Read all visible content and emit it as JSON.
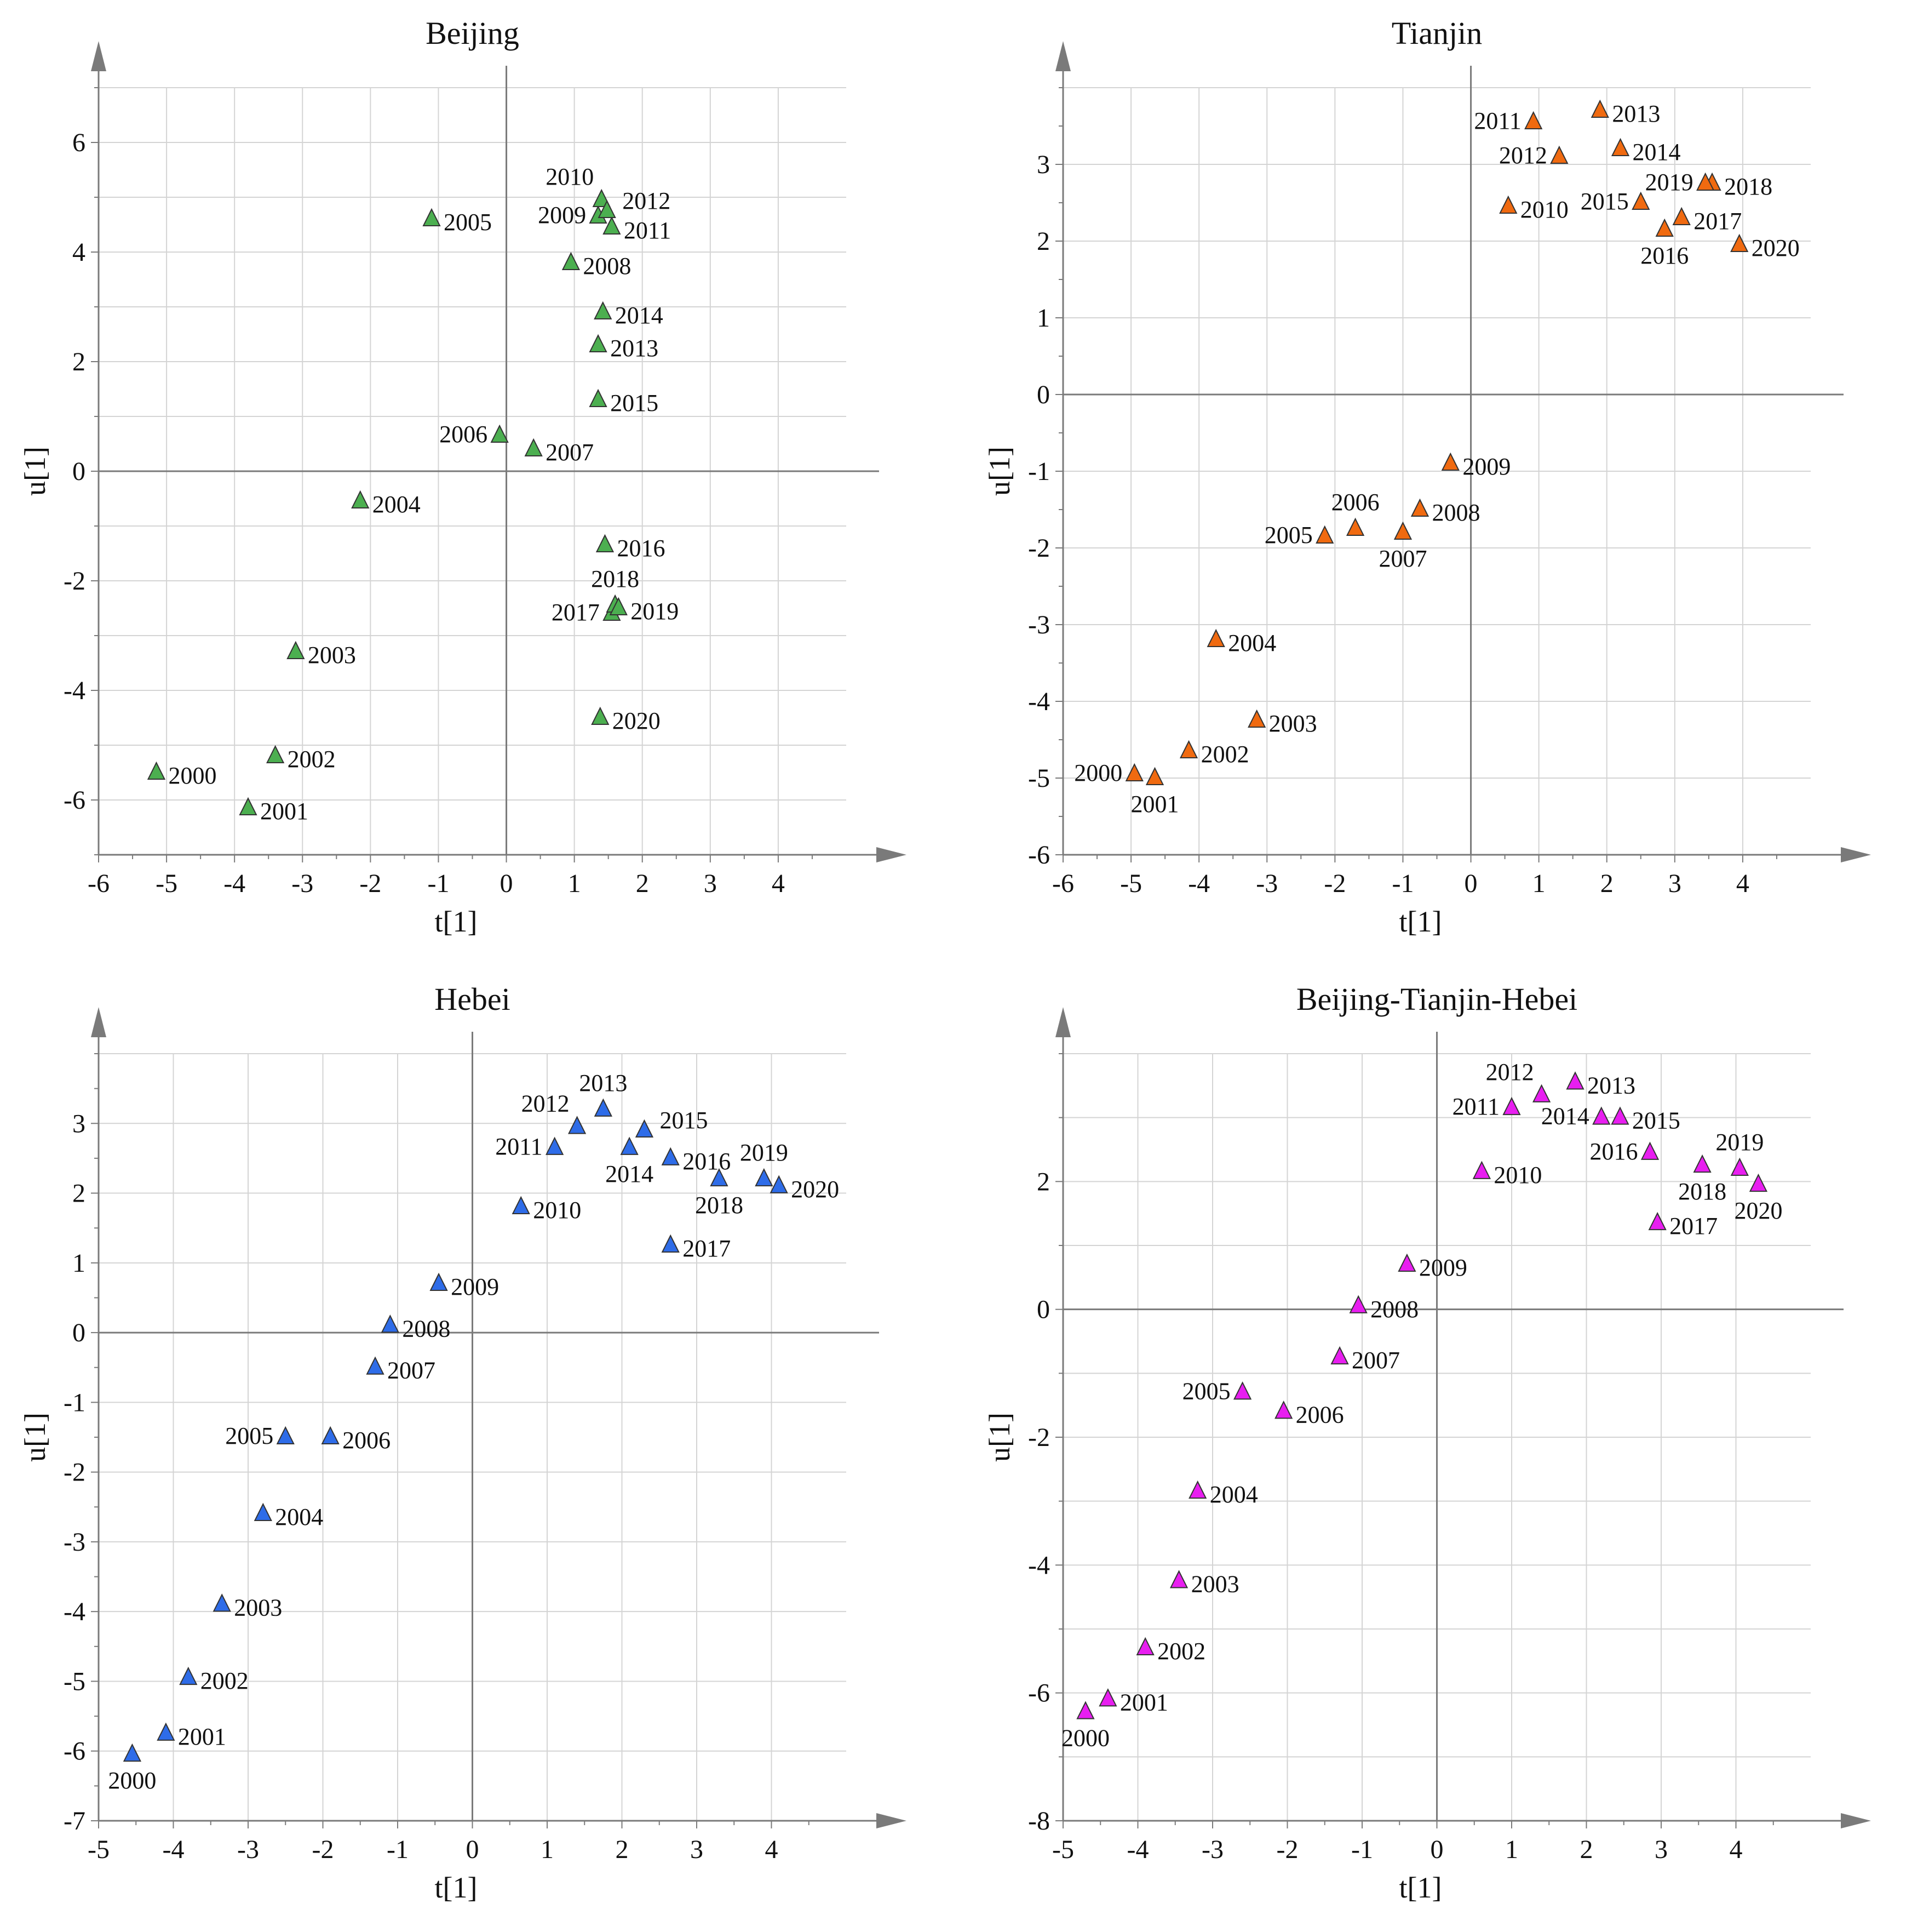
{
  "chart_data": [
    {
      "type": "scatter",
      "title": "Beijing",
      "xlabel": "t[1]",
      "ylabel": "u[1]",
      "xlim": [
        -6,
        5
      ],
      "ylim": [
        -7,
        7
      ],
      "xticks": [
        -6,
        -5,
        -4,
        -3,
        -2,
        -1,
        0,
        1,
        2,
        3,
        4
      ],
      "yticks": [
        -6,
        -4,
        -2,
        0,
        2,
        4,
        6
      ],
      "color": "#4caf50",
      "points": [
        {
          "label": "2000",
          "x": -5.15,
          "y": -5.5,
          "pos": "right"
        },
        {
          "label": "2001",
          "x": -3.8,
          "y": -6.15,
          "pos": "right"
        },
        {
          "label": "2002",
          "x": -3.4,
          "y": -5.2,
          "pos": "right"
        },
        {
          "label": "2003",
          "x": -3.1,
          "y": -3.3,
          "pos": "right"
        },
        {
          "label": "2004",
          "x": -2.15,
          "y": -0.55,
          "pos": "right"
        },
        {
          "label": "2005",
          "x": -1.1,
          "y": 4.6,
          "pos": "right"
        },
        {
          "label": "2006",
          "x": -0.1,
          "y": 0.65,
          "pos": "left"
        },
        {
          "label": "2007",
          "x": 0.4,
          "y": 0.4,
          "pos": "right"
        },
        {
          "label": "2008",
          "x": 0.95,
          "y": 3.8,
          "pos": "right"
        },
        {
          "label": "2009",
          "x": 1.35,
          "y": 4.65,
          "pos": "left"
        },
        {
          "label": "2010",
          "x": 1.4,
          "y": 4.95,
          "pos": "upleft"
        },
        {
          "label": "2011",
          "x": 1.55,
          "y": 4.45,
          "pos": "right"
        },
        {
          "label": "2012",
          "x": 1.48,
          "y": 4.75,
          "pos": "upright"
        },
        {
          "label": "2013",
          "x": 1.35,
          "y": 2.3,
          "pos": "right"
        },
        {
          "label": "2014",
          "x": 1.42,
          "y": 2.9,
          "pos": "right"
        },
        {
          "label": "2015",
          "x": 1.35,
          "y": 1.3,
          "pos": "right"
        },
        {
          "label": "2016",
          "x": 1.45,
          "y": -1.35,
          "pos": "right"
        },
        {
          "label": "2017",
          "x": 1.55,
          "y": -2.6,
          "pos": "left"
        },
        {
          "label": "2018",
          "x": 1.6,
          "y": -2.45,
          "pos": "above"
        },
        {
          "label": "2019",
          "x": 1.65,
          "y": -2.5,
          "pos": "right"
        },
        {
          "label": "2020",
          "x": 1.38,
          "y": -4.5,
          "pos": "right"
        }
      ]
    },
    {
      "type": "scatter",
      "title": "Tianjin",
      "xlabel": "t[1]",
      "ylabel": "u[1]",
      "xlim": [
        -6,
        5
      ],
      "ylim": [
        -6,
        4
      ],
      "xticks": [
        -6,
        -5,
        -4,
        -3,
        -2,
        -1,
        0,
        1,
        2,
        3,
        4
      ],
      "yticks": [
        -6,
        -5,
        -4,
        -3,
        -2,
        -1,
        0,
        1,
        2,
        3
      ],
      "color": "#f06a10",
      "points": [
        {
          "label": "2000",
          "x": -4.95,
          "y": -4.95,
          "pos": "left"
        },
        {
          "label": "2001",
          "x": -4.65,
          "y": -5.0,
          "pos": "below"
        },
        {
          "label": "2002",
          "x": -4.15,
          "y": -4.65,
          "pos": "right"
        },
        {
          "label": "2003",
          "x": -3.15,
          "y": -4.25,
          "pos": "right"
        },
        {
          "label": "2004",
          "x": -3.75,
          "y": -3.2,
          "pos": "right"
        },
        {
          "label": "2005",
          "x": -2.15,
          "y": -1.85,
          "pos": "left"
        },
        {
          "label": "2006",
          "x": -1.7,
          "y": -1.75,
          "pos": "above"
        },
        {
          "label": "2007",
          "x": -1.0,
          "y": -1.8,
          "pos": "below"
        },
        {
          "label": "2008",
          "x": -0.75,
          "y": -1.5,
          "pos": "right"
        },
        {
          "label": "2009",
          "x": -0.3,
          "y": -0.9,
          "pos": "right"
        },
        {
          "label": "2010",
          "x": 0.55,
          "y": 2.45,
          "pos": "right"
        },
        {
          "label": "2011",
          "x": 0.92,
          "y": 3.55,
          "pos": "left"
        },
        {
          "label": "2012",
          "x": 1.3,
          "y": 3.1,
          "pos": "left"
        },
        {
          "label": "2013",
          "x": 1.9,
          "y": 3.7,
          "pos": "right"
        },
        {
          "label": "2014",
          "x": 2.2,
          "y": 3.2,
          "pos": "right"
        },
        {
          "label": "2015",
          "x": 2.5,
          "y": 2.5,
          "pos": "left"
        },
        {
          "label": "2016",
          "x": 2.85,
          "y": 2.15,
          "pos": "below"
        },
        {
          "label": "2017",
          "x": 3.1,
          "y": 2.3,
          "pos": "right"
        },
        {
          "label": "2018",
          "x": 3.55,
          "y": 2.75,
          "pos": "right"
        },
        {
          "label": "2019",
          "x": 3.45,
          "y": 2.75,
          "pos": "left"
        },
        {
          "label": "2020",
          "x": 3.95,
          "y": 1.95,
          "pos": "right"
        }
      ]
    },
    {
      "type": "scatter",
      "title": "Hebei",
      "xlabel": "t[1]",
      "ylabel": "u[1]",
      "xlim": [
        -5,
        5
      ],
      "ylim": [
        -7,
        4
      ],
      "xticks": [
        -5,
        -4,
        -3,
        -2,
        -1,
        0,
        1,
        2,
        3,
        4
      ],
      "yticks": [
        -7,
        -6,
        -5,
        -4,
        -3,
        -2,
        -1,
        0,
        1,
        2,
        3
      ],
      "color": "#2e6ce8",
      "points": [
        {
          "label": "2000",
          "x": -4.55,
          "y": -6.05,
          "pos": "below"
        },
        {
          "label": "2001",
          "x": -4.1,
          "y": -5.75,
          "pos": "right"
        },
        {
          "label": "2002",
          "x": -3.8,
          "y": -4.95,
          "pos": "right"
        },
        {
          "label": "2003",
          "x": -3.35,
          "y": -3.9,
          "pos": "right"
        },
        {
          "label": "2004",
          "x": -2.8,
          "y": -2.6,
          "pos": "right"
        },
        {
          "label": "2005",
          "x": -2.5,
          "y": -1.5,
          "pos": "left"
        },
        {
          "label": "2006",
          "x": -1.9,
          "y": -1.5,
          "pos": "right"
        },
        {
          "label": "2007",
          "x": -1.3,
          "y": -0.5,
          "pos": "right"
        },
        {
          "label": "2008",
          "x": -1.1,
          "y": 0.1,
          "pos": "right"
        },
        {
          "label": "2009",
          "x": -0.45,
          "y": 0.7,
          "pos": "right"
        },
        {
          "label": "2010",
          "x": 0.65,
          "y": 1.8,
          "pos": "right"
        },
        {
          "label": "2011",
          "x": 1.1,
          "y": 2.65,
          "pos": "left"
        },
        {
          "label": "2012",
          "x": 1.4,
          "y": 2.95,
          "pos": "upleft"
        },
        {
          "label": "2013",
          "x": 1.75,
          "y": 3.2,
          "pos": "above"
        },
        {
          "label": "2014",
          "x": 2.1,
          "y": 2.65,
          "pos": "below"
        },
        {
          "label": "2015",
          "x": 2.3,
          "y": 2.9,
          "pos": "upright"
        },
        {
          "label": "2016",
          "x": 2.65,
          "y": 2.5,
          "pos": "right"
        },
        {
          "label": "2017",
          "x": 2.65,
          "y": 1.25,
          "pos": "right"
        },
        {
          "label": "2018",
          "x": 3.3,
          "y": 2.2,
          "pos": "below"
        },
        {
          "label": "2019",
          "x": 3.9,
          "y": 2.2,
          "pos": "above"
        },
        {
          "label": "2020",
          "x": 4.1,
          "y": 2.1,
          "pos": "right"
        }
      ]
    },
    {
      "type": "scatter",
      "title": "Beijing-Tianjin-Hebei",
      "xlabel": "t[1]",
      "ylabel": "u[1]",
      "xlim": [
        -5,
        5
      ],
      "ylim": [
        -8,
        4
      ],
      "xticks": [
        -5,
        -4,
        -3,
        -2,
        -1,
        0,
        1,
        2,
        3,
        4
      ],
      "yticks": [
        -8,
        -6,
        -4,
        -2,
        0,
        2
      ],
      "color": "#e81ef0",
      "points": [
        {
          "label": "2000",
          "x": -4.7,
          "y": -6.3,
          "pos": "below"
        },
        {
          "label": "2001",
          "x": -4.4,
          "y": -6.1,
          "pos": "right"
        },
        {
          "label": "2002",
          "x": -3.9,
          "y": -5.3,
          "pos": "right"
        },
        {
          "label": "2003",
          "x": -3.45,
          "y": -4.25,
          "pos": "right"
        },
        {
          "label": "2004",
          "x": -3.2,
          "y": -2.85,
          "pos": "right"
        },
        {
          "label": "2005",
          "x": -2.6,
          "y": -1.3,
          "pos": "left"
        },
        {
          "label": "2006",
          "x": -2.05,
          "y": -1.6,
          "pos": "right"
        },
        {
          "label": "2007",
          "x": -1.3,
          "y": -0.75,
          "pos": "right"
        },
        {
          "label": "2008",
          "x": -1.05,
          "y": 0.05,
          "pos": "right"
        },
        {
          "label": "2009",
          "x": -0.4,
          "y": 0.7,
          "pos": "right"
        },
        {
          "label": "2010",
          "x": 0.6,
          "y": 2.15,
          "pos": "right"
        },
        {
          "label": "2011",
          "x": 1.0,
          "y": 3.15,
          "pos": "left"
        },
        {
          "label": "2012",
          "x": 1.4,
          "y": 3.35,
          "pos": "upleft"
        },
        {
          "label": "2013",
          "x": 1.85,
          "y": 3.55,
          "pos": "right"
        },
        {
          "label": "2014",
          "x": 2.2,
          "y": 3.0,
          "pos": "left"
        },
        {
          "label": "2015",
          "x": 2.45,
          "y": 3.0,
          "pos": "right"
        },
        {
          "label": "2016",
          "x": 2.85,
          "y": 2.45,
          "pos": "left"
        },
        {
          "label": "2017",
          "x": 2.95,
          "y": 1.35,
          "pos": "right"
        },
        {
          "label": "2018",
          "x": 3.55,
          "y": 2.25,
          "pos": "below"
        },
        {
          "label": "2019",
          "x": 4.05,
          "y": 2.2,
          "pos": "above"
        },
        {
          "label": "2020",
          "x": 4.3,
          "y": 1.95,
          "pos": "below"
        }
      ]
    }
  ]
}
